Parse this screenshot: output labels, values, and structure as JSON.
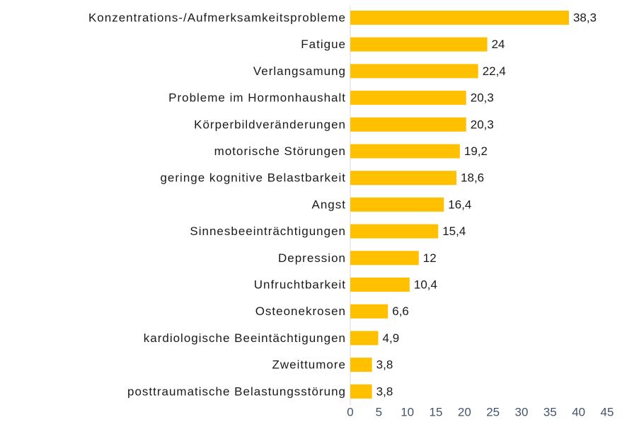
{
  "chart_data": {
    "type": "barh",
    "color": "#FFC000",
    "categories": [
      "Konzentrations-/Aufmerksamkeitsprobleme",
      "Fatigue",
      "Verlangsamung",
      "Probleme im Hormonhaushalt",
      "Körperbildveränderungen",
      "motorische Störungen",
      "geringe kognitive Belastbarkeit",
      "Angst",
      "Sinnesbeeinträchtigungen",
      "Depression",
      "Unfruchtbarkeit",
      "Osteonekrosen",
      "kardiologische Beeintächtigungen",
      "Zweittumore",
      "posttraumatische Belastungsstörung"
    ],
    "values": [
      38.3,
      24,
      22.4,
      20.3,
      20.3,
      19.2,
      18.6,
      16.4,
      15.4,
      12,
      10.4,
      6.6,
      4.9,
      3.8,
      3.8
    ],
    "value_labels": [
      "38,3",
      "24",
      "22,4",
      "20,3",
      "20,3",
      "19,2",
      "18,6",
      "16,4",
      "15,4",
      "12",
      "10,4",
      "6,6",
      "4,9",
      "3,8",
      "3,8"
    ],
    "xlim": [
      0,
      45
    ],
    "xticks": [
      0,
      5,
      10,
      15,
      20,
      25,
      30,
      35,
      40,
      45
    ],
    "grid": false
  }
}
